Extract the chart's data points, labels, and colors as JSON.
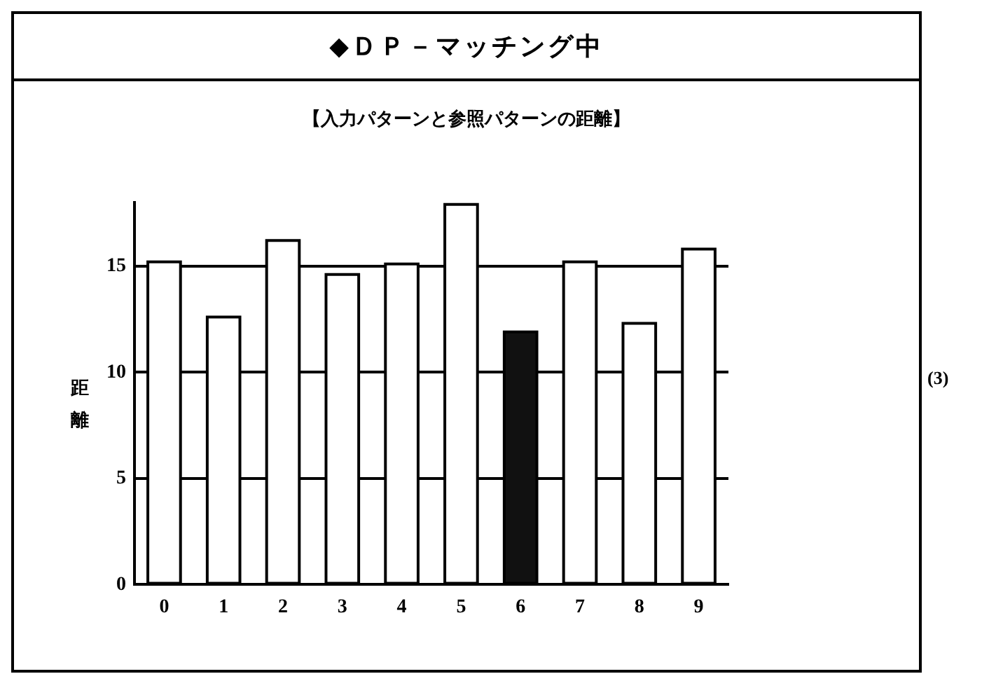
{
  "chart_data": {
    "type": "bar",
    "title": "◆ＤＰ－マッチング中",
    "subtitle": "【入力パターンと参照パターンの距離】",
    "ylabel": "距離",
    "categories": [
      "0",
      "1",
      "2",
      "3",
      "4",
      "5",
      "6",
      "7",
      "8",
      "9"
    ],
    "values": [
      15.2,
      12.6,
      16.2,
      14.6,
      15.1,
      17.9,
      11.9,
      15.2,
      12.3,
      15.8
    ],
    "colors": [
      "#ffffff",
      "#ffffff",
      "#ffffff",
      "#ffffff",
      "#ffffff",
      "#ffffff",
      "#111111",
      "#ffffff",
      "#ffffff",
      "#ffffff"
    ],
    "ylim": [
      0,
      18
    ],
    "yticks": [
      0,
      5,
      10,
      15
    ],
    "grid": "y",
    "legend": false,
    "annotations": [
      "(3)"
    ]
  }
}
